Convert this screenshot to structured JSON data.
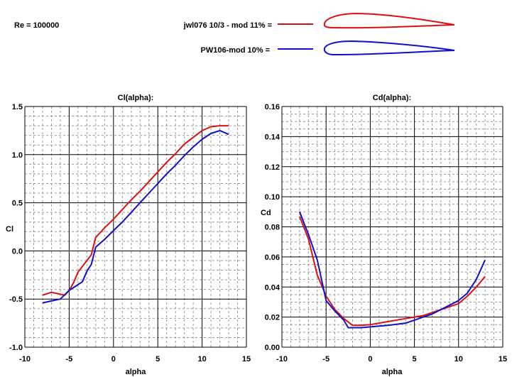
{
  "header": {
    "reynolds": "Re = 100000",
    "legend": [
      {
        "label": "jwl076 10/3  - mod 11% =",
        "color": "#dd1111"
      },
      {
        "label": "PW106-mod 10% =",
        "color": "#1111cc"
      }
    ]
  },
  "chart_data": [
    {
      "type": "line",
      "title": "Cl(alpha):",
      "xlabel": "alpha",
      "ylabel": "Cl",
      "xlim": [
        -10,
        15
      ],
      "ylim": [
        -1.0,
        1.5
      ],
      "xticks": [
        -10,
        -5,
        0,
        5,
        10,
        15
      ],
      "yticks": [
        -1.0,
        -0.5,
        0.0,
        0.5,
        1.0,
        1.5
      ],
      "ytick_labels": [
        "-1.0",
        "-0.5",
        "0.0",
        "0.5",
        "1.0",
        "1.5"
      ],
      "x_minor_step": 1,
      "y_minor_step": 0.1,
      "grid": true,
      "series": [
        {
          "name": "jwl076 10/3  - mod 11%",
          "color": "#dd1111",
          "x": [
            -8,
            -7,
            -6,
            -5.5,
            -5,
            -4.5,
            -4,
            -3,
            -2.5,
            -2,
            -1,
            0,
            1,
            2,
            3,
            4,
            5,
            6,
            7,
            8,
            9,
            10,
            11,
            12,
            13
          ],
          "y": [
            -0.46,
            -0.43,
            -0.45,
            -0.46,
            -0.41,
            -0.33,
            -0.22,
            -0.1,
            -0.04,
            0.14,
            0.24,
            0.33,
            0.43,
            0.53,
            0.62,
            0.72,
            0.82,
            0.92,
            1.01,
            1.11,
            1.18,
            1.25,
            1.29,
            1.3,
            1.3
          ]
        },
        {
          "name": "PW106-mod 10%",
          "color": "#1111cc",
          "x": [
            -8,
            -7,
            -6,
            -5,
            -4,
            -3.5,
            -3,
            -2.5,
            -2,
            -1,
            0,
            1,
            2,
            3,
            4,
            5,
            6,
            7,
            8,
            9,
            10,
            11,
            12,
            13
          ],
          "y": [
            -0.54,
            -0.52,
            -0.5,
            -0.41,
            -0.35,
            -0.32,
            -0.21,
            -0.14,
            0.04,
            0.12,
            0.21,
            0.3,
            0.4,
            0.5,
            0.6,
            0.7,
            0.8,
            0.89,
            0.99,
            1.08,
            1.16,
            1.22,
            1.25,
            1.21
          ]
        }
      ]
    },
    {
      "type": "line",
      "title": "Cd(alpha):",
      "xlabel": "alpha",
      "ylabel": "Cd",
      "xlim": [
        -10,
        15
      ],
      "ylim": [
        0.0,
        0.16
      ],
      "xticks": [
        -10,
        -5,
        0,
        5,
        10,
        15
      ],
      "yticks": [
        0.0,
        0.02,
        0.04,
        0.06,
        0.08,
        0.1,
        0.12,
        0.14,
        0.16
      ],
      "ytick_labels": [
        "0.00",
        "0.02",
        "0.04",
        "0.06",
        "0.08",
        "0.10",
        "0.12",
        "0.14",
        "0.16"
      ],
      "x_minor_step": 1,
      "y_minor_step": 0.005,
      "grid": true,
      "series": [
        {
          "name": "jwl076 10/3  - mod 11%",
          "color": "#dd1111",
          "x": [
            -8,
            -7,
            -6,
            -5,
            -4,
            -3,
            -2,
            -1,
            0,
            2,
            4,
            5,
            6,
            7,
            8,
            9,
            10,
            11,
            12,
            13
          ],
          "y": [
            0.087,
            0.072,
            0.048,
            0.034,
            0.025,
            0.019,
            0.0145,
            0.0145,
            0.015,
            0.017,
            0.019,
            0.02,
            0.021,
            0.023,
            0.025,
            0.027,
            0.029,
            0.034,
            0.04,
            0.047
          ]
        },
        {
          "name": "PW106-mod 10%",
          "color": "#1111cc",
          "x": [
            -8,
            -7,
            -6,
            -5,
            -4,
            -3,
            -2.5,
            -1,
            0,
            2,
            4,
            5,
            6,
            7,
            8,
            9,
            10,
            11,
            12,
            13
          ],
          "y": [
            0.09,
            0.075,
            0.058,
            0.031,
            0.024,
            0.018,
            0.013,
            0.013,
            0.0135,
            0.0145,
            0.016,
            0.018,
            0.02,
            0.022,
            0.025,
            0.028,
            0.031,
            0.036,
            0.045,
            0.058
          ]
        }
      ]
    }
  ]
}
